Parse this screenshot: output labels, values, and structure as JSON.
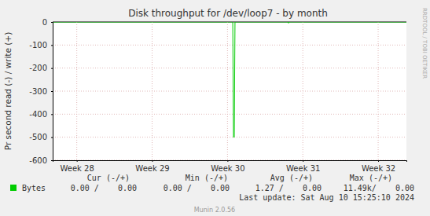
{
  "chart_data": {
    "type": "line",
    "title": "Disk throughput for /dev/loop7 - by month",
    "y_label": "Pr second read (-) / write (+)",
    "x": [
      27.68,
      30.07,
      30.08,
      30.09,
      30.1,
      30.8,
      30.81,
      30.82,
      32.375
    ],
    "series": [
      {
        "name": "Bytes",
        "color": "#00cc00",
        "values": [
          0,
          0,
          -500,
          -500,
          0,
          0,
          -5,
          0,
          0
        ],
        "stats": [
          "0.00 /    0.00",
          "0.00 /    0.00",
          "1.27 /    0.00",
          "11.49k/    0.00"
        ]
      }
    ],
    "stats_headers": [
      "Cur (-/+)",
      "Min (-/+)",
      "Avg (-/+)",
      "Max (-/+)"
    ],
    "xlim": [
      27.68,
      32.375
    ],
    "xticks": [
      {
        "value": 28,
        "label": "Week 28"
      },
      {
        "value": 29,
        "label": "Week 29"
      },
      {
        "value": 30,
        "label": "Week 30"
      },
      {
        "value": 31,
        "label": "Week 31"
      },
      {
        "value": 32,
        "label": "Week 32"
      }
    ],
    "ylim": [
      -600,
      0
    ],
    "yticks": [
      0,
      -100,
      -200,
      -300,
      -400,
      -500,
      -600
    ],
    "grid": true,
    "last_update": "Last update: Sat Aug 10 15:25:10 2024",
    "footer": "Munin 2.0.56",
    "watermark": "RRDTOOL / TOBI OETIKER"
  }
}
